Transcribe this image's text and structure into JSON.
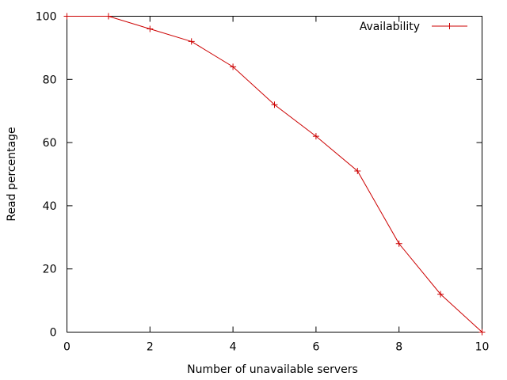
{
  "chart_data": {
    "type": "line",
    "xlabel": "Number of unavailable servers",
    "ylabel": "Read percentage",
    "xlim": [
      0,
      10
    ],
    "ylim": [
      0,
      100
    ],
    "xticks": [
      0,
      2,
      4,
      6,
      8,
      10
    ],
    "yticks": [
      0,
      20,
      40,
      60,
      80,
      100
    ],
    "grid": false,
    "legend_position": "top-right",
    "series": [
      {
        "name": "Availability",
        "color": "#cc0000",
        "marker": "plus",
        "x": [
          0,
          1,
          2,
          3,
          4,
          5,
          6,
          7,
          8,
          9,
          10
        ],
        "y": [
          100,
          100,
          96,
          92,
          84,
          72,
          62,
          51,
          28,
          12,
          0
        ]
      }
    ]
  }
}
